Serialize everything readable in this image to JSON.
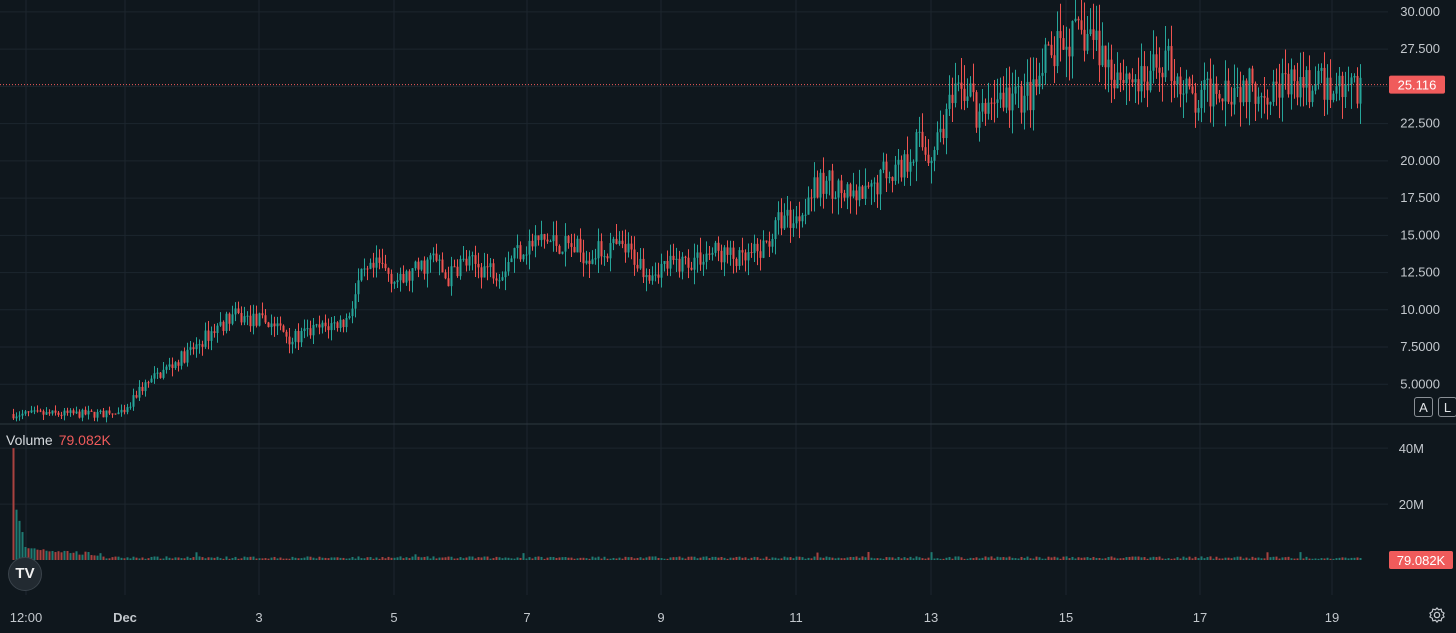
{
  "chart_data": {
    "type": "candlestick",
    "price_axis": {
      "ticks": [
        "30.000",
        "27.500",
        "25.000",
        "22.500",
        "20.000",
        "17.500",
        "15.000",
        "12.500",
        "10.000",
        "7.5000",
        "5.0000"
      ],
      "range": [
        2.4,
        30.8
      ]
    },
    "volume_axis": {
      "ticks": [
        "40M",
        "20M"
      ],
      "range": [
        0,
        44
      ]
    },
    "time_axis": {
      "labels": [
        {
          "text": "12:00",
          "bold": false
        },
        {
          "text": "Dec",
          "bold": true
        },
        {
          "text": "3",
          "bold": false
        },
        {
          "text": "5",
          "bold": false
        },
        {
          "text": "7",
          "bold": false
        },
        {
          "text": "9",
          "bold": false
        },
        {
          "text": "11",
          "bold": false
        },
        {
          "text": "13",
          "bold": false
        },
        {
          "text": "15",
          "bold": false
        },
        {
          "text": "17",
          "bold": false
        },
        {
          "text": "19",
          "bold": false
        }
      ]
    },
    "last_price": "25.116",
    "last_price_value": 25.116,
    "volume_title": "Volume",
    "last_volume": "79.082K",
    "price_path": [
      [
        0,
        3.0
      ],
      [
        0.2,
        4.6
      ],
      [
        0.6,
        6.0
      ],
      [
        1.0,
        7.3
      ],
      [
        1.3,
        8.6
      ],
      [
        1.6,
        9.6
      ],
      [
        1.8,
        9.4
      ],
      [
        2.2,
        9.1
      ],
      [
        2.5,
        8.0
      ],
      [
        2.8,
        8.6
      ],
      [
        3.3,
        9.3
      ],
      [
        3.5,
        12.0
      ],
      [
        3.8,
        13.0
      ],
      [
        4.1,
        11.8
      ],
      [
        4.3,
        12.5
      ],
      [
        4.6,
        13.5
      ],
      [
        4.8,
        12.0
      ],
      [
        5.0,
        13.2
      ],
      [
        5.6,
        12.6
      ],
      [
        5.8,
        13.9
      ],
      [
        6.2,
        14.7
      ],
      [
        6.6,
        14.3
      ],
      [
        6.9,
        13.7
      ],
      [
        7.3,
        14.2
      ],
      [
        7.5,
        13.9
      ],
      [
        7.8,
        12.6
      ],
      [
        8.0,
        12.9
      ],
      [
        8.4,
        13.3
      ],
      [
        8.8,
        13.9
      ],
      [
        9.0,
        13.6
      ],
      [
        9.2,
        13.2
      ],
      [
        9.5,
        14.0
      ],
      [
        9.8,
        16.3
      ],
      [
        10.0,
        16.0
      ],
      [
        10.2,
        17.8
      ],
      [
        10.5,
        18.6
      ],
      [
        10.8,
        17.4
      ],
      [
        11.1,
        17.7
      ],
      [
        11.3,
        19.3
      ],
      [
        11.6,
        19.6
      ],
      [
        11.8,
        21.4
      ],
      [
        12.0,
        20.4
      ],
      [
        12.3,
        23.6
      ],
      [
        12.6,
        25.2
      ],
      [
        12.7,
        22.3
      ],
      [
        12.9,
        24.2
      ],
      [
        13.3,
        24.2
      ],
      [
        13.6,
        24.6
      ],
      [
        13.7,
        26.5
      ],
      [
        14.1,
        28.2
      ],
      [
        14.4,
        28.5
      ],
      [
        14.7,
        26.2
      ],
      [
        15.0,
        25.6
      ],
      [
        15.2,
        25.0
      ],
      [
        15.5,
        27.0
      ],
      [
        15.8,
        24.8
      ],
      [
        16.0,
        23.4
      ],
      [
        16.1,
        24.4
      ],
      [
        16.3,
        25.2
      ],
      [
        16.5,
        25.0
      ]
    ]
  }
}
